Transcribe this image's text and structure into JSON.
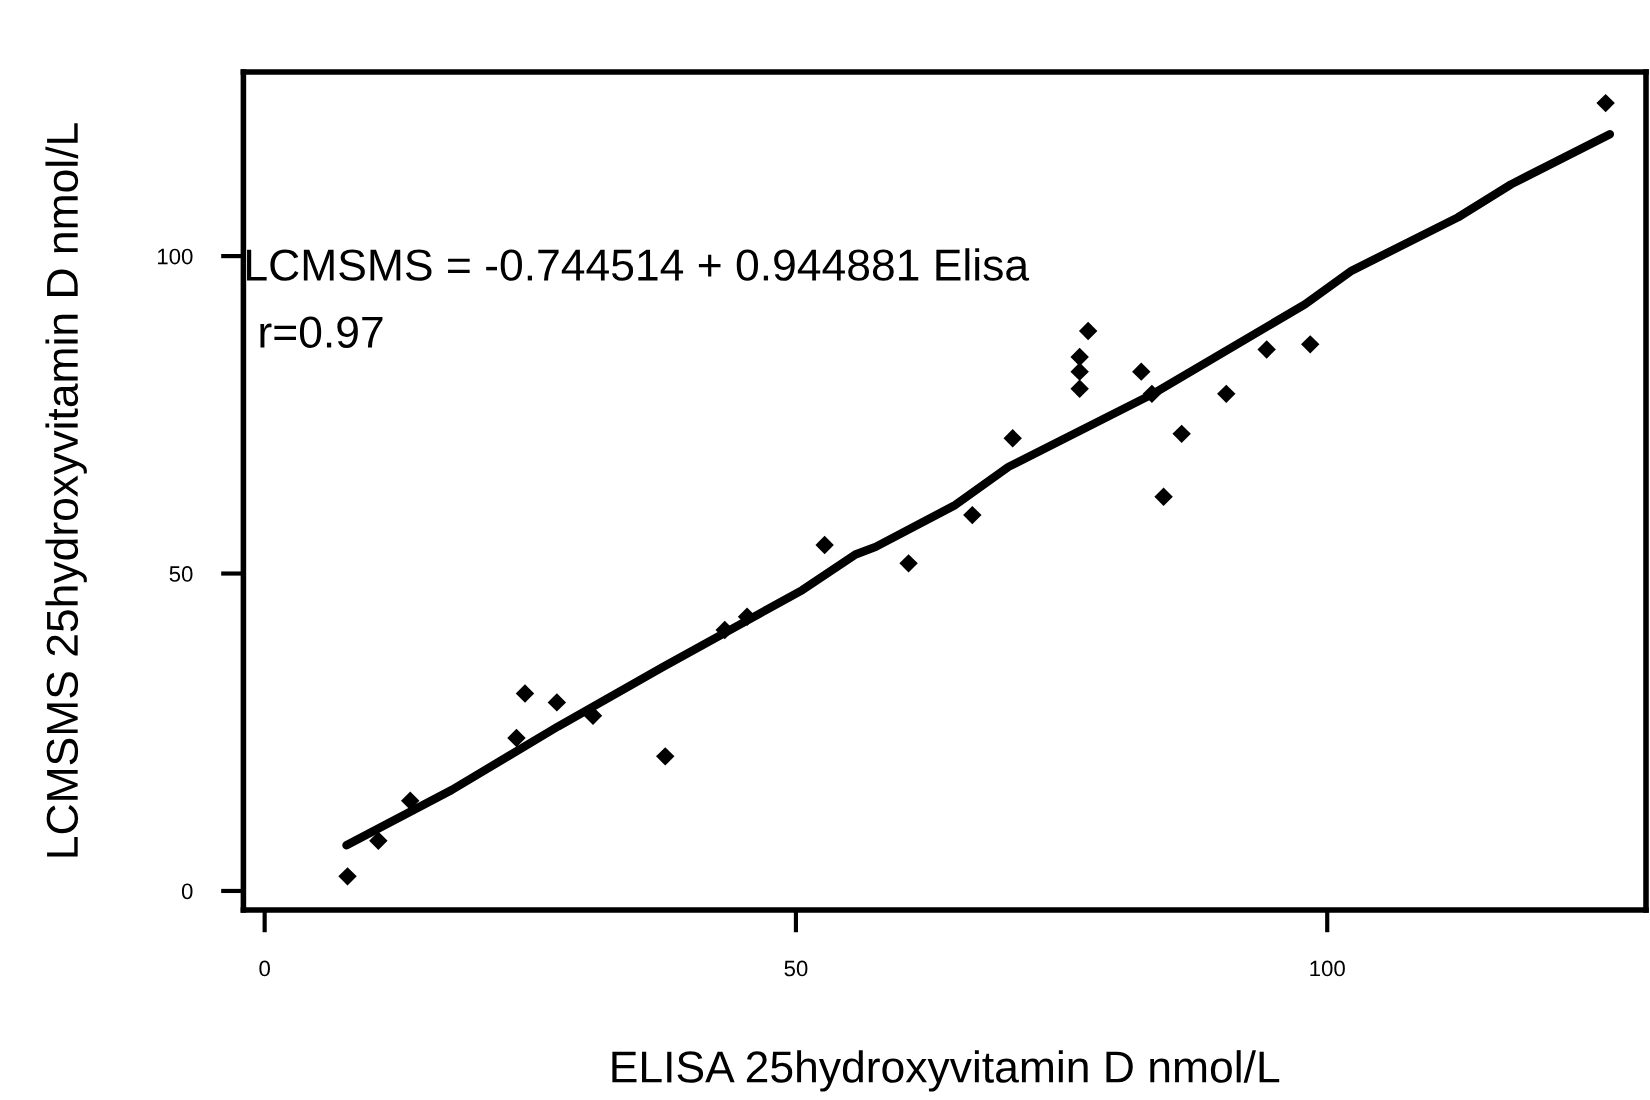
{
  "chart_data": {
    "type": "scatter",
    "xlabel": "ELISA 25hydroxyvitamin D nmol/L",
    "ylabel": "LCMSMS 25hydroxyvitamin D nmol/L",
    "xlim": [
      -2,
      130
    ],
    "ylim": [
      -3,
      129
    ],
    "xticks": [
      0,
      50,
      100
    ],
    "yticks": [
      0,
      50,
      100
    ],
    "grid": false,
    "legend": false,
    "annotations": [
      "LCMSMS = -0.744514 + 0.944881 Elisa",
      "r=0.97"
    ],
    "series": [
      {
        "marker": "diamond",
        "color": "#000000",
        "x": [
          7.8,
          10.7,
          13.7,
          23.7,
          24.5,
          27.5,
          30.9,
          37.7,
          43.3,
          45.4,
          52.7,
          60.6,
          66.6,
          70.4,
          76.7,
          76.7,
          76.7,
          77.5,
          82.5,
          83.5,
          84.6,
          86.3,
          90.5,
          94.3,
          98.4,
          126.2
        ],
        "values": [
          2.3,
          7.9,
          14.2,
          24.1,
          31.1,
          29.7,
          27.6,
          21.2,
          41.1,
          43.2,
          54.5,
          51.6,
          59.2,
          71.3,
          79.1,
          81.8,
          84.1,
          88.2,
          81.8,
          78.3,
          62.1,
          72.0,
          78.3,
          85.3,
          86.1,
          124.1
        ]
      },
      {
        "type": "line",
        "color": "#000000",
        "line_style": "solid",
        "x": [
          7.7,
          17.6,
          27.6,
          37.5,
          50.6,
          55.6,
          57.5,
          65.0,
          70.0,
          83.6,
          97.9,
          102.3,
          112.3,
          117.3,
          126.6
        ],
        "values": [
          7.2,
          15.9,
          25.9,
          35.3,
          47.4,
          53.0,
          54.2,
          60.8,
          66.8,
          78.3,
          92.4,
          97.7,
          106.1,
          111.3,
          119.2
        ]
      }
    ]
  }
}
